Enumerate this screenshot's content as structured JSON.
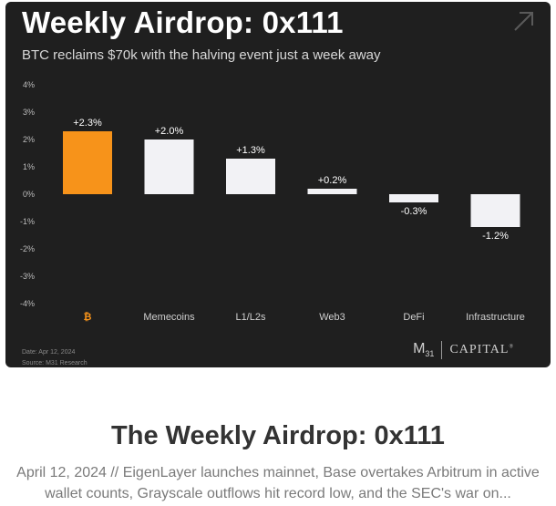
{
  "card": {
    "title": "Weekly Airdrop: 0x111",
    "subtitle": "BTC reclaims $70k with the halving event just a week away",
    "footer_date": "Date: Apr 12, 2024",
    "footer_source": "Source: M31 Research",
    "logo": {
      "m31": "M",
      "m31_sub": "31",
      "capital": "CAPITAL",
      "mark": "®"
    },
    "corner_icon": "arrow-up-right-icon"
  },
  "chart_data": {
    "type": "bar",
    "title": "",
    "xlabel": "",
    "ylabel": "",
    "categories": [
      "₿",
      "Memecoins",
      "L1/L2s",
      "Web3",
      "DeFi",
      "Infrastructure"
    ],
    "values": [
      2.3,
      2.0,
      1.3,
      0.2,
      -0.3,
      -1.2
    ],
    "data_labels": [
      "+2.3%",
      "+2.0%",
      "+1.3%",
      "+0.2%",
      "-0.3%",
      "-1.2%"
    ],
    "yticks": [
      "4%",
      "3%",
      "2%",
      "1%",
      "0%",
      "-1%",
      "-2%",
      "-3%",
      "-4%"
    ],
    "ytick_values": [
      4,
      3,
      2,
      1,
      0,
      -1,
      -2,
      -3,
      -4
    ],
    "ylim": [
      -4,
      4
    ],
    "grid": false,
    "colors": {
      "highlight": "#f7931a",
      "bar": "#f2f2f5",
      "background": "#1f1f1f",
      "text": "#cfcfcf"
    }
  },
  "article": {
    "title": "The Weekly Airdrop: 0x111",
    "summary": "April 12, 2024 // EigenLayer launches mainnet, Base overtakes Arbitrum in active wallet counts, Grayscale outflows hit record low, and the SEC's war on..."
  }
}
